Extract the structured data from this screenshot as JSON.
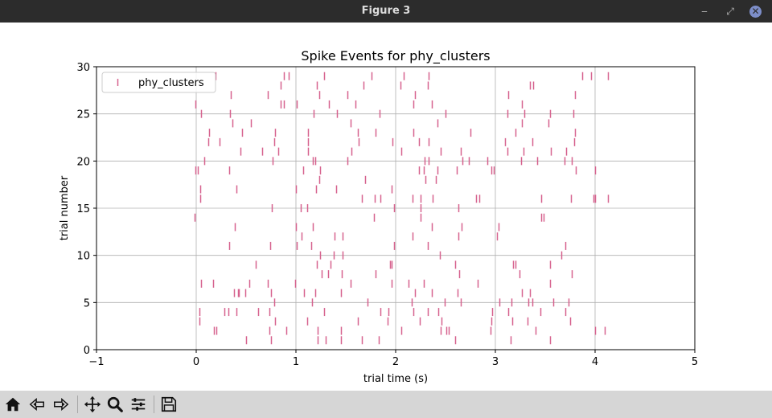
{
  "window": {
    "title": "Figure 3",
    "minimize_glyph": "‒",
    "restore_glyph": "⤢",
    "close_glyph": "✕"
  },
  "toolbar": {
    "icons": [
      "home-icon",
      "back-icon",
      "forward-icon",
      "pan-icon",
      "zoom-icon",
      "configure-subplots-icon",
      "save-icon"
    ]
  },
  "colors": {
    "spike": "#d6628e",
    "grid": "#b0b0b0",
    "titlebar": "#2c2c2c",
    "toolbar": "#d6d6d6"
  },
  "chart_data": {
    "type": "scatter",
    "marker": "|",
    "title": "Spike Events for phy_clusters",
    "xlabel": "trial time (s)",
    "ylabel": "trial number",
    "xlim": [
      -1,
      5
    ],
    "ylim": [
      0,
      30
    ],
    "xticks": [
      -1,
      0,
      1,
      2,
      3,
      4,
      5
    ],
    "yticks": [
      0,
      5,
      10,
      15,
      20,
      25,
      30
    ],
    "xtick_labels": [
      "−1",
      "0",
      "1",
      "2",
      "3",
      "4",
      "5"
    ],
    "ytick_labels": [
      "0",
      "5",
      "10",
      "15",
      "20",
      "25",
      "30"
    ],
    "grid": true,
    "legend_position": "upper left",
    "series": [
      {
        "name": "phy_clusters",
        "points": [
          [
            0.5,
            1
          ],
          [
            0.75,
            1
          ],
          [
            1.22,
            1
          ],
          [
            1.3,
            1
          ],
          [
            1.45,
            1
          ],
          [
            1.66,
            1
          ],
          [
            1.83,
            1
          ],
          [
            2.6,
            1
          ],
          [
            3.15,
            1
          ],
          [
            3.55,
            1
          ],
          [
            0.18,
            2
          ],
          [
            0.2,
            2
          ],
          [
            0.73,
            2
          ],
          [
            0.9,
            2
          ],
          [
            1.22,
            2
          ],
          [
            1.45,
            2
          ],
          [
            2.06,
            2
          ],
          [
            2.45,
            2
          ],
          [
            2.51,
            2
          ],
          [
            2.53,
            2
          ],
          [
            2.95,
            2
          ],
          [
            3.4,
            2
          ],
          [
            4.0,
            2
          ],
          [
            4.1,
            2
          ],
          [
            0.03,
            3
          ],
          [
            0.79,
            3
          ],
          [
            1.11,
            3
          ],
          [
            1.62,
            3
          ],
          [
            1.92,
            3
          ],
          [
            2.24,
            3
          ],
          [
            2.46,
            3
          ],
          [
            2.96,
            3
          ],
          [
            3.17,
            3
          ],
          [
            3.32,
            3
          ],
          [
            3.75,
            3
          ],
          [
            0.03,
            4
          ],
          [
            0.28,
            4
          ],
          [
            0.32,
            4
          ],
          [
            0.4,
            4
          ],
          [
            0.62,
            4
          ],
          [
            0.73,
            4
          ],
          [
            1.28,
            4
          ],
          [
            1.85,
            4
          ],
          [
            1.93,
            4
          ],
          [
            2.18,
            4
          ],
          [
            2.32,
            4
          ],
          [
            2.43,
            4
          ],
          [
            2.97,
            4
          ],
          [
            3.13,
            4
          ],
          [
            3.45,
            4
          ],
          [
            3.7,
            4
          ],
          [
            0.78,
            5
          ],
          [
            1.16,
            5
          ],
          [
            1.72,
            5
          ],
          [
            2.16,
            5
          ],
          [
            2.49,
            5
          ],
          [
            2.65,
            5
          ],
          [
            3.04,
            5
          ],
          [
            3.16,
            5
          ],
          [
            3.33,
            5
          ],
          [
            3.37,
            5
          ],
          [
            3.58,
            5
          ],
          [
            3.73,
            5
          ],
          [
            0.38,
            6
          ],
          [
            0.42,
            6
          ],
          [
            0.43,
            6
          ],
          [
            0.49,
            6
          ],
          [
            0.75,
            6
          ],
          [
            1.08,
            6
          ],
          [
            1.19,
            6
          ],
          [
            1.45,
            6
          ],
          [
            2.19,
            6
          ],
          [
            2.36,
            6
          ],
          [
            2.62,
            6
          ],
          [
            3.27,
            6
          ],
          [
            3.35,
            6
          ],
          [
            0.05,
            7
          ],
          [
            0.17,
            7
          ],
          [
            0.53,
            7
          ],
          [
            0.72,
            7
          ],
          [
            0.99,
            7
          ],
          [
            1.55,
            7
          ],
          [
            1.96,
            7
          ],
          [
            2.13,
            7
          ],
          [
            2.28,
            7
          ],
          [
            2.82,
            7
          ],
          [
            3.55,
            7
          ],
          [
            1.26,
            8
          ],
          [
            1.32,
            8
          ],
          [
            1.46,
            8
          ],
          [
            1.8,
            8
          ],
          [
            2.64,
            8
          ],
          [
            3.24,
            8
          ],
          [
            3.77,
            8
          ],
          [
            0.6,
            9
          ],
          [
            1.21,
            9
          ],
          [
            1.35,
            9
          ],
          [
            1.94,
            9
          ],
          [
            1.96,
            9
          ],
          [
            2.6,
            9
          ],
          [
            3.18,
            9
          ],
          [
            3.2,
            9
          ],
          [
            3.55,
            9
          ],
          [
            1.24,
            10
          ],
          [
            1.38,
            10
          ],
          [
            1.47,
            10
          ],
          [
            2.44,
            10
          ],
          [
            3.66,
            10
          ],
          [
            0.33,
            11
          ],
          [
            0.74,
            11
          ],
          [
            1.01,
            11
          ],
          [
            1.15,
            11
          ],
          [
            1.98,
            11
          ],
          [
            2.32,
            11
          ],
          [
            3.7,
            11
          ],
          [
            1.06,
            12
          ],
          [
            1.39,
            12
          ],
          [
            1.47,
            12
          ],
          [
            2.17,
            12
          ],
          [
            2.63,
            12
          ],
          [
            3.02,
            12
          ],
          [
            0.39,
            13
          ],
          [
            1.0,
            13
          ],
          [
            1.17,
            13
          ],
          [
            2.36,
            13
          ],
          [
            2.66,
            13
          ],
          [
            3.03,
            13
          ],
          [
            -0.02,
            14
          ],
          [
            1.78,
            14
          ],
          [
            2.25,
            14
          ],
          [
            3.46,
            14
          ],
          [
            3.48,
            14
          ],
          [
            0.76,
            15
          ],
          [
            1.05,
            15
          ],
          [
            1.11,
            15
          ],
          [
            1.98,
            15
          ],
          [
            2.25,
            15
          ],
          [
            2.63,
            15
          ],
          [
            0.04,
            16
          ],
          [
            1.66,
            16
          ],
          [
            1.79,
            16
          ],
          [
            1.85,
            16
          ],
          [
            2.17,
            16
          ],
          [
            2.25,
            16
          ],
          [
            2.37,
            16
          ],
          [
            2.81,
            16
          ],
          [
            2.84,
            16
          ],
          [
            3.46,
            16
          ],
          [
            3.76,
            16
          ],
          [
            3.98,
            16
          ],
          [
            4.0,
            16
          ],
          [
            4.13,
            16
          ],
          [
            0.04,
            17
          ],
          [
            0.4,
            17
          ],
          [
            1.0,
            17
          ],
          [
            1.2,
            17
          ],
          [
            1.4,
            17
          ],
          [
            1.96,
            17
          ],
          [
            1.23,
            18
          ],
          [
            1.69,
            18
          ],
          [
            2.3,
            18
          ],
          [
            2.4,
            18
          ],
          [
            -0.01,
            19
          ],
          [
            0.02,
            19
          ],
          [
            0.33,
            19
          ],
          [
            1.07,
            19
          ],
          [
            1.24,
            19
          ],
          [
            2.23,
            19
          ],
          [
            2.28,
            19
          ],
          [
            2.42,
            19
          ],
          [
            2.61,
            19
          ],
          [
            2.96,
            19
          ],
          [
            2.98,
            19
          ],
          [
            3.81,
            19
          ],
          [
            4.0,
            19
          ],
          [
            0.08,
            20
          ],
          [
            0.77,
            20
          ],
          [
            1.17,
            20
          ],
          [
            1.19,
            20
          ],
          [
            1.52,
            20
          ],
          [
            2.29,
            20
          ],
          [
            2.33,
            20
          ],
          [
            2.67,
            20
          ],
          [
            2.73,
            20
          ],
          [
            2.92,
            20
          ],
          [
            3.26,
            20
          ],
          [
            3.42,
            20
          ],
          [
            3.69,
            20
          ],
          [
            3.77,
            20
          ],
          [
            0.44,
            21
          ],
          [
            0.66,
            21
          ],
          [
            0.82,
            21
          ],
          [
            1.12,
            21
          ],
          [
            1.56,
            21
          ],
          [
            2.06,
            21
          ],
          [
            2.45,
            21
          ],
          [
            2.65,
            21
          ],
          [
            3.12,
            21
          ],
          [
            3.28,
            21
          ],
          [
            3.56,
            21
          ],
          [
            3.71,
            21
          ],
          [
            0.12,
            22
          ],
          [
            0.23,
            22
          ],
          [
            0.78,
            22
          ],
          [
            1.12,
            22
          ],
          [
            1.63,
            22
          ],
          [
            1.97,
            22
          ],
          [
            2.23,
            22
          ],
          [
            2.33,
            22
          ],
          [
            3.1,
            22
          ],
          [
            3.37,
            22
          ],
          [
            3.79,
            22
          ],
          [
            0.13,
            23
          ],
          [
            0.46,
            23
          ],
          [
            0.79,
            23
          ],
          [
            1.12,
            23
          ],
          [
            1.62,
            23
          ],
          [
            1.8,
            23
          ],
          [
            2.18,
            23
          ],
          [
            2.75,
            23
          ],
          [
            3.2,
            23
          ],
          [
            3.8,
            23
          ],
          [
            0.36,
            24
          ],
          [
            0.55,
            24
          ],
          [
            1.55,
            24
          ],
          [
            2.42,
            24
          ],
          [
            3.27,
            24
          ],
          [
            3.53,
            24
          ],
          [
            0.05,
            25
          ],
          [
            0.34,
            25
          ],
          [
            1.18,
            25
          ],
          [
            1.41,
            25
          ],
          [
            1.84,
            25
          ],
          [
            2.5,
            25
          ],
          [
            3.12,
            25
          ],
          [
            3.29,
            25
          ],
          [
            3.55,
            25
          ],
          [
            3.78,
            25
          ],
          [
            -0.01,
            26
          ],
          [
            0.85,
            26
          ],
          [
            0.88,
            26
          ],
          [
            1.01,
            26
          ],
          [
            1.33,
            26
          ],
          [
            1.6,
            26
          ],
          [
            2.18,
            26
          ],
          [
            2.36,
            26
          ],
          [
            3.27,
            26
          ],
          [
            0.35,
            27
          ],
          [
            0.72,
            27
          ],
          [
            1.23,
            27
          ],
          [
            1.52,
            27
          ],
          [
            2.19,
            27
          ],
          [
            3.13,
            27
          ],
          [
            3.8,
            27
          ],
          [
            0.85,
            28
          ],
          [
            1.21,
            28
          ],
          [
            1.68,
            28
          ],
          [
            2.05,
            28
          ],
          [
            2.32,
            28
          ],
          [
            3.35,
            28
          ],
          [
            3.38,
            28
          ],
          [
            0.19,
            29
          ],
          [
            0.88,
            29
          ],
          [
            0.93,
            29
          ],
          [
            1.28,
            29
          ],
          [
            1.76,
            29
          ],
          [
            2.08,
            29
          ],
          [
            2.33,
            29
          ],
          [
            3.87,
            29
          ],
          [
            3.96,
            29
          ],
          [
            4.13,
            29
          ]
        ]
      }
    ]
  }
}
